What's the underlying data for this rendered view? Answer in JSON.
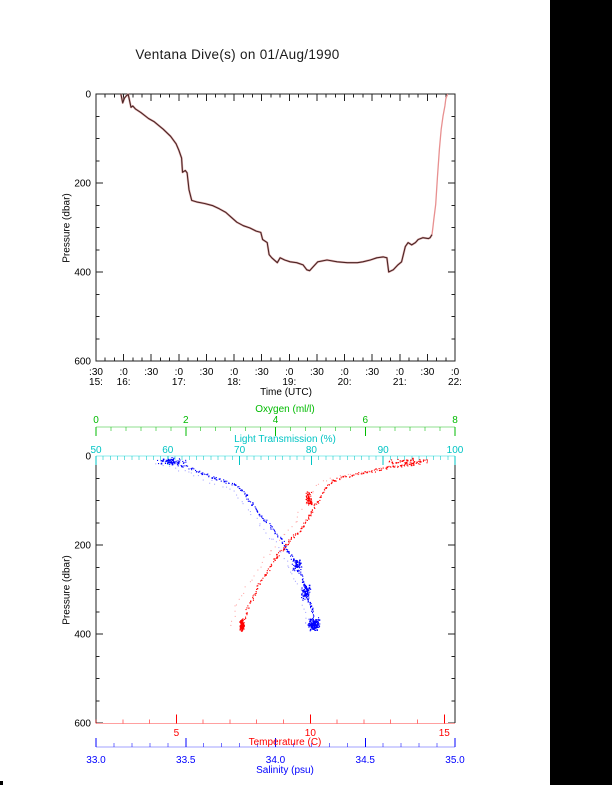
{
  "title": "Ventana Dive(s) on 01/Aug/1990",
  "colors": {
    "frame": "#222222",
    "background": "#ffffff",
    "right_bar": "#000000"
  },
  "chart_data": [
    {
      "type": "line",
      "title": "Ventana Dive(s) on 01/Aug/1990",
      "xlabel": "Time (UTC)",
      "ylabel": "Pressure (dbar)",
      "x_axis": {
        "unit": "minutes UTC",
        "range": [
          930,
          1320
        ],
        "minor_step": 10,
        "ticks": [
          {
            "m": 930,
            "l": ":30",
            "h": "15:"
          },
          {
            "m": 960,
            "l": ":0",
            "h": "16:"
          },
          {
            "m": 990,
            "l": ":30",
            "h": ""
          },
          {
            "m": 1020,
            "l": ":0",
            "h": "17:"
          },
          {
            "m": 1050,
            "l": ":30",
            "h": ""
          },
          {
            "m": 1080,
            "l": ":0",
            "h": "18:"
          },
          {
            "m": 1110,
            "l": ":30",
            "h": ""
          },
          {
            "m": 1140,
            "l": ":0",
            "h": "19:"
          },
          {
            "m": 1170,
            "l": ":30",
            "h": ""
          },
          {
            "m": 1200,
            "l": ":0",
            "h": "20:"
          },
          {
            "m": 1230,
            "l": ":30",
            "h": ""
          },
          {
            "m": 1260,
            "l": ":0",
            "h": "21:"
          },
          {
            "m": 1290,
            "l": ":30",
            "h": ""
          },
          {
            "m": 1320,
            "l": ":0",
            "h": "22:"
          }
        ]
      },
      "y_axis": {
        "range": [
          0,
          600
        ],
        "orientation": "0 at top, increasing downward",
        "ticks": [
          0,
          200,
          400,
          600
        ],
        "tick_labels": [
          "0",
          "200",
          "400",
          "600"
        ],
        "minor_step": 50
      },
      "series": [
        {
          "name": "dive-depth-track-descent",
          "color": "#4a2424",
          "halo_color": "#dc9c9c",
          "points_time_min_vs_dbar": [
            [
              957,
              0
            ],
            [
              959,
              20
            ],
            [
              961,
              9
            ],
            [
              963,
              4
            ],
            [
              965,
              1
            ],
            [
              968,
              30
            ],
            [
              970,
              27
            ],
            [
              973,
              34
            ],
            [
              979,
              42
            ],
            [
              987,
              55
            ],
            [
              993,
              62
            ],
            [
              1003,
              79
            ],
            [
              1011,
              95
            ],
            [
              1017,
              112
            ],
            [
              1020,
              126
            ],
            [
              1023,
              144
            ],
            [
              1024,
              176
            ],
            [
              1027,
              172
            ],
            [
              1029,
              177
            ],
            [
              1031,
              215
            ],
            [
              1034,
              239
            ],
            [
              1040,
              243
            ],
            [
              1048,
              246
            ],
            [
              1057,
              251
            ],
            [
              1064,
              258
            ],
            [
              1071,
              266
            ],
            [
              1077,
              277
            ],
            [
              1083,
              288
            ],
            [
              1090,
              296
            ],
            [
              1097,
              301
            ],
            [
              1104,
              308
            ],
            [
              1109,
              311
            ],
            [
              1111,
              327
            ],
            [
              1116,
              334
            ],
            [
              1118,
              361
            ],
            [
              1121,
              368
            ],
            [
              1127,
              379
            ],
            [
              1130,
              368
            ],
            [
              1135,
              373
            ],
            [
              1141,
              377
            ],
            [
              1148,
              379
            ],
            [
              1155,
              384
            ],
            [
              1159,
              395
            ],
            [
              1162,
              397
            ],
            [
              1166,
              388
            ],
            [
              1171,
              377
            ],
            [
              1181,
              373
            ],
            [
              1192,
              377
            ],
            [
              1203,
              379
            ],
            [
              1214,
              379
            ],
            [
              1220,
              377
            ],
            [
              1228,
              373
            ],
            [
              1235,
              368
            ],
            [
              1242,
              366
            ],
            [
              1246,
              368
            ],
            [
              1248,
              400
            ],
            [
              1253,
              395
            ],
            [
              1258,
              384
            ],
            [
              1262,
              377
            ],
            [
              1266,
              343
            ],
            [
              1269,
              334
            ],
            [
              1273,
              339
            ],
            [
              1277,
              334
            ],
            [
              1280,
              327
            ],
            [
              1285,
              323
            ],
            [
              1291,
              325
            ],
            [
              1293,
              323
            ],
            [
              1295,
              316
            ]
          ]
        },
        {
          "name": "dive-depth-track-ascent",
          "color": "#e89090",
          "points_time_min_vs_dbar": [
            [
              1295,
              316
            ],
            [
              1296,
              300
            ],
            [
              1297,
              282
            ],
            [
              1299,
              248
            ],
            [
              1301,
              185
            ],
            [
              1303,
              124
            ],
            [
              1305,
              79
            ],
            [
              1307,
              50
            ],
            [
              1309,
              27
            ],
            [
              1310,
              11
            ],
            [
              1312,
              0
            ]
          ]
        }
      ]
    },
    {
      "type": "scatter",
      "ylabel": "Pressure (dbar)",
      "y_axis": {
        "range": [
          0,
          600
        ],
        "orientation": "0 at top, increasing downward",
        "ticks": [
          0,
          200,
          400,
          600
        ],
        "tick_labels": [
          "0",
          "200",
          "400",
          "600"
        ],
        "minor_step": 50
      },
      "axes": {
        "oxygen": {
          "label": "Oxygen (ml/l)",
          "position": "top-outer",
          "color": "#00bb00",
          "line_color": "#8fdf8f",
          "range": [
            0,
            8
          ],
          "ticks": [
            0,
            2,
            4,
            6,
            8
          ],
          "tick_labels": [
            "0",
            "2",
            "4",
            "6",
            "8"
          ],
          "minor_step": 0.3333333
        },
        "light": {
          "label": "Light Transmission (%)",
          "position": "top-inner",
          "color": "#00c4c4",
          "line_color": "#8cecec",
          "range": [
            50,
            100
          ],
          "ticks": [
            50,
            60,
            70,
            80,
            90,
            100
          ],
          "tick_labels": [
            "50",
            "60",
            "70",
            "80",
            "90",
            "100"
          ],
          "minor_step": 1
        },
        "temperature": {
          "label": "Temperature (C)",
          "position": "bottom-inner",
          "color": "#ff0000",
          "line_color": "#ffa0a0",
          "range": [
            2,
            15.4
          ],
          "ticks": [
            5,
            10,
            15
          ],
          "tick_labels": [
            "5",
            "10",
            "15"
          ],
          "minor_step": 1
        },
        "salinity": {
          "label": "Salinity (psu)",
          "position": "bottom-outer",
          "color": "#0000ff",
          "line_color": "#a0a0ff",
          "range": [
            33,
            35
          ],
          "ticks": [
            33,
            33.5,
            34,
            34.5,
            35
          ],
          "tick_labels": [
            "33.0",
            "33.5",
            "34.0",
            "34.5",
            "35.0"
          ],
          "minor_step": 0.1
        }
      },
      "series": [
        {
          "name": "temperature",
          "axis": "temperature",
          "color": "#ff0000",
          "sparse_color": "#ff9a9a",
          "sparse_offset": [
            -0.45,
            2
          ],
          "points_value_vs_dbar": [
            [
              14.4,
              9
            ],
            [
              13.7,
              20
            ],
            [
              13.0,
              25
            ],
            [
              12.6,
              31
            ],
            [
              11.6,
              43
            ],
            [
              11.2,
              49
            ],
            [
              10.8,
              58
            ],
            [
              10.6,
              70
            ],
            [
              10.5,
              81
            ],
            [
              10.3,
              99
            ],
            [
              10.2,
              110
            ],
            [
              10.1,
              121
            ],
            [
              10.0,
              137
            ],
            [
              9.8,
              151
            ],
            [
              9.6,
              171
            ],
            [
              9.3,
              184
            ],
            [
              9.1,
              204
            ],
            [
              8.8,
              222
            ],
            [
              8.6,
              240
            ],
            [
              8.4,
              261
            ],
            [
              8.2,
              279
            ],
            [
              8.0,
              297
            ],
            [
              7.9,
              317
            ],
            [
              7.7,
              335
            ],
            [
              7.6,
              353
            ],
            [
              7.5,
              373
            ],
            [
              7.42,
              387
            ]
          ],
          "clusters": [
            {
              "v": 7.45,
              "p": 381,
              "sv": 0.09,
              "sp": 14,
              "n": 130
            },
            {
              "v": 13.6,
              "p": 14,
              "sv": 0.85,
              "sp": 9,
              "n": 45
            },
            {
              "v": 9.95,
              "p": 95,
              "sv": 0.12,
              "sp": 18,
              "n": 60
            }
          ]
        },
        {
          "name": "salinity",
          "axis": "salinity",
          "color": "#0000ff",
          "sparse_color": "#9a9aff",
          "sparse_offset": [
            -0.035,
            6
          ],
          "points_value_vs_dbar": [
            [
              33.37,
              9
            ],
            [
              33.41,
              13
            ],
            [
              33.46,
              20
            ],
            [
              33.51,
              25
            ],
            [
              33.58,
              36
            ],
            [
              33.65,
              49
            ],
            [
              33.73,
              58
            ],
            [
              33.79,
              70
            ],
            [
              33.81,
              76
            ],
            [
              33.84,
              92
            ],
            [
              33.87,
              106
            ],
            [
              33.9,
              126
            ],
            [
              33.93,
              139
            ],
            [
              33.98,
              162
            ],
            [
              34.01,
              178
            ],
            [
              34.04,
              189
            ],
            [
              34.05,
              204
            ],
            [
              34.08,
              218
            ],
            [
              34.1,
              234
            ],
            [
              34.12,
              249
            ],
            [
              34.14,
              263
            ],
            [
              34.15,
              279
            ],
            [
              34.18,
              301
            ],
            [
              34.18,
              317
            ],
            [
              34.19,
              328
            ],
            [
              34.2,
              339
            ],
            [
              34.21,
              353
            ],
            [
              34.21,
              369
            ],
            [
              34.21,
              384
            ]
          ],
          "clusters": [
            {
              "v": 34.215,
              "p": 378,
              "sv": 0.035,
              "sp": 16,
              "n": 150
            },
            {
              "v": 33.42,
              "p": 12,
              "sv": 0.09,
              "sp": 9,
              "n": 60
            },
            {
              "v": 34.17,
              "p": 305,
              "sv": 0.03,
              "sp": 20,
              "n": 70
            },
            {
              "v": 34.12,
              "p": 245,
              "sv": 0.03,
              "sp": 15,
              "n": 50
            }
          ]
        }
      ]
    }
  ]
}
